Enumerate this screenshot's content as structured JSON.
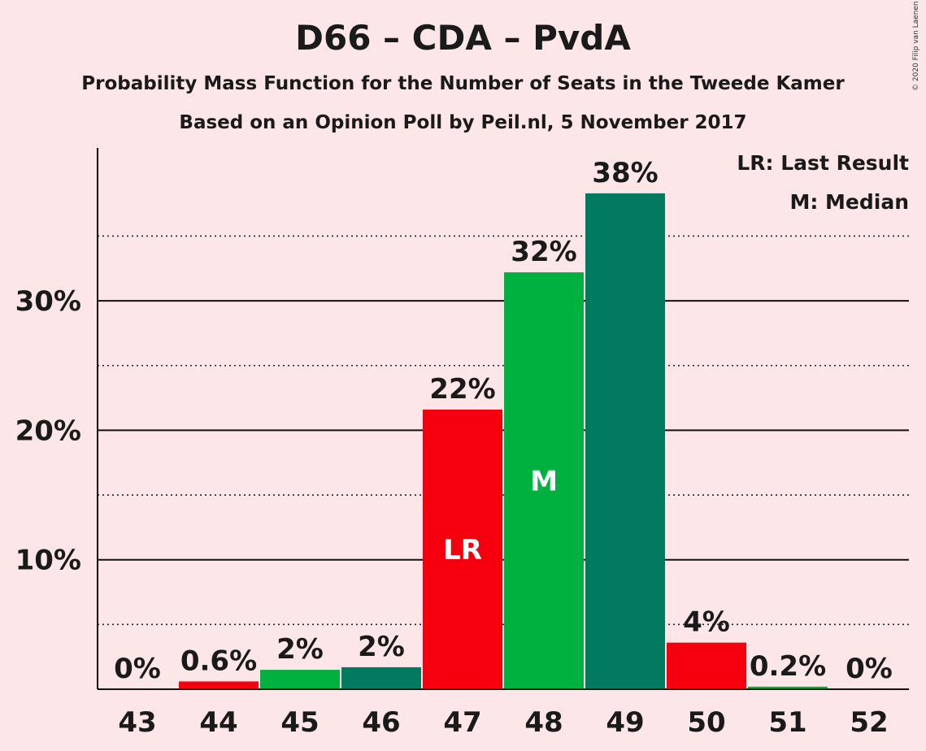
{
  "chart_data": {
    "type": "bar",
    "title": "D66 – CDA – PvdA",
    "subtitle": "Probability Mass Function for the Number of Seats in the Tweede Kamer",
    "subtitle2": "Based on an Opinion Poll by Peil.nl, 5 November 2017",
    "copyright": "© 2020 Filip van Laenen",
    "categories": [
      "43",
      "44",
      "45",
      "46",
      "47",
      "48",
      "49",
      "50",
      "51",
      "52"
    ],
    "values": [
      0,
      0.6,
      1.5,
      1.7,
      21.6,
      32.2,
      38.3,
      3.6,
      0.2,
      0
    ],
    "data_labels": [
      "0%",
      "0.6%",
      "2%",
      "2%",
      "22%",
      "32%",
      "38%",
      "4%",
      "0.2%",
      "0%"
    ],
    "bar_colors": [
      "#F5000F",
      "#F5000F",
      "#00B140",
      "#007B5F",
      "#F5000F",
      "#00B140",
      "#007B5F",
      "#F5000F",
      "#00B140",
      "#007B5F"
    ],
    "markers": [
      {
        "category": "47",
        "text": "LR"
      },
      {
        "category": "48",
        "text": "M"
      }
    ],
    "ylim": [
      0,
      42
    ],
    "yticks": [
      {
        "value": 10,
        "label": "10%"
      },
      {
        "value": 20,
        "label": "20%"
      },
      {
        "value": 30,
        "label": "30%"
      }
    ],
    "minor_gridlines": [
      5,
      15,
      25,
      35
    ],
    "legend": {
      "placement": "top-right",
      "entries": [
        "LR: Last Result",
        "M: Median"
      ]
    }
  }
}
